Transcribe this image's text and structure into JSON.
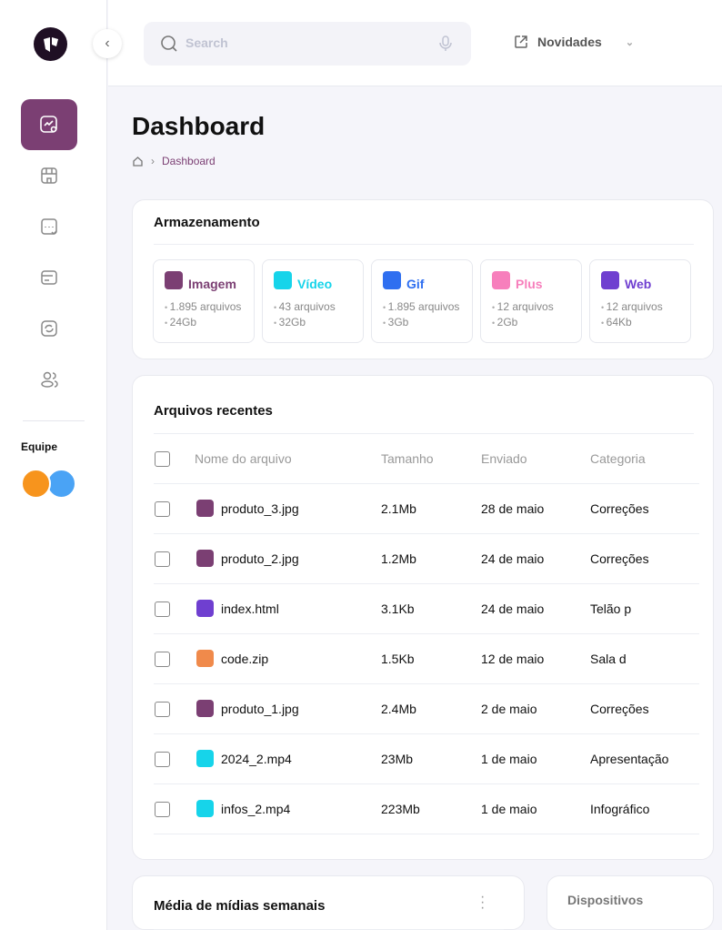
{
  "sidebar": {
    "nav": [
      "dashboard-icon",
      "store-icon",
      "chat-check-icon",
      "card-icon",
      "sync-icon",
      "users-icon"
    ],
    "team_label": "Equipe"
  },
  "header": {
    "search_placeholder": "Search",
    "news_label": "Novidades"
  },
  "page": {
    "title": "Dashboard",
    "breadcrumb": "Dashboard"
  },
  "storage": {
    "title": "Armazenamento",
    "tiles": [
      {
        "name": "Imagem",
        "files": "1.895 arquivos",
        "size": "24Gb",
        "color": "#7b3f73"
      },
      {
        "name": "Vídeo",
        "files": "43 arquivos",
        "size": "32Gb",
        "color": "#16d4ea"
      },
      {
        "name": "Gif",
        "files": "1.895 arquivos",
        "size": "3Gb",
        "color": "#2f6ff0"
      },
      {
        "name": "Plus",
        "files": "12 arquivos",
        "size": "2Gb",
        "color": "#f77fbc"
      },
      {
        "name": "Web",
        "files": "12 arquivos",
        "size": "64Kb",
        "color": "#6f3fd0"
      }
    ]
  },
  "recent": {
    "title": "Arquivos recentes",
    "columns": [
      "Nome do arquivo",
      "Tamanho",
      "Enviado",
      "Categoria"
    ],
    "rows": [
      {
        "name": "produto_3.jpg",
        "size": "2.1Mb",
        "sent": "28 de maio",
        "category": "Correções",
        "type": "image",
        "color": "#7b3f73"
      },
      {
        "name": "produto_2.jpg",
        "size": "1.2Mb",
        "sent": "24 de maio",
        "category": "Correções",
        "type": "image",
        "color": "#7b3f73"
      },
      {
        "name": "index.html",
        "size": "3.1Kb",
        "sent": "24 de maio",
        "category": "Telão p",
        "type": "code",
        "color": "#6f3fd0"
      },
      {
        "name": "code.zip",
        "size": "1.5Kb",
        "sent": "12 de maio",
        "category": "Sala d",
        "type": "zip",
        "color": "#f08a4b"
      },
      {
        "name": "produto_1.jpg",
        "size": "2.4Mb",
        "sent": "2 de maio",
        "category": "Correções",
        "type": "image",
        "color": "#7b3f73"
      },
      {
        "name": "2024_2.mp4",
        "size": "23Mb",
        "sent": "1 de maio",
        "category": "Apresentação",
        "type": "video",
        "color": "#16d4ea"
      },
      {
        "name": "infos_2.mp4",
        "size": "223Mb",
        "sent": "1 de maio",
        "category": "Infográfico",
        "type": "video",
        "color": "#16d4ea"
      }
    ]
  },
  "weekly": {
    "title": "Média de mídias semanais"
  },
  "devices": {
    "title": "Dispositivos"
  }
}
